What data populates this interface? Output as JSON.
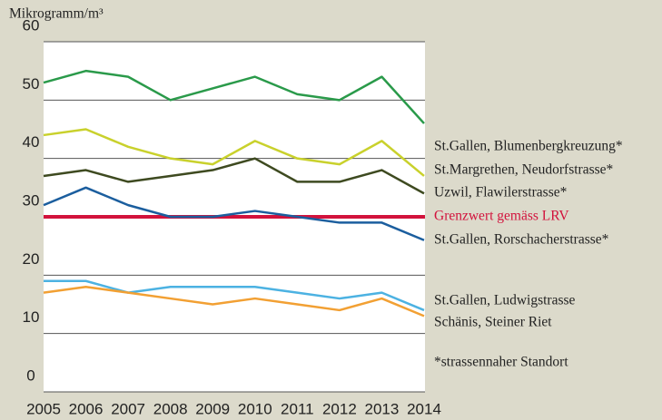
{
  "chart_data": {
    "type": "line",
    "ylabel": "Mikrogramm/m³",
    "x": [
      2005,
      2006,
      2007,
      2008,
      2009,
      2010,
      2011,
      2012,
      2013,
      2014
    ],
    "xlim": [
      2005,
      2014
    ],
    "xticks": [
      2005,
      2006,
      2007,
      2008,
      2009,
      2010,
      2011,
      2012,
      2013,
      2014
    ],
    "ylim": [
      0,
      60
    ],
    "yticks": [
      0,
      10,
      20,
      30,
      40,
      50,
      60
    ],
    "grid": true,
    "series": [
      {
        "name": "St.Gallen, Blumenbergkreuzung*",
        "color": "#2a9a4a",
        "values": [
          53,
          55,
          54,
          50,
          52,
          54,
          51,
          50,
          54,
          46
        ]
      },
      {
        "name": "St.Margrethen, Neudorfstrasse*",
        "color": "#c9d12c",
        "values": [
          44,
          45,
          42,
          40,
          39,
          43,
          40,
          39,
          43,
          37
        ]
      },
      {
        "name": "Uzwil, Flawilerstrasse*",
        "color": "#3e4a20",
        "values": [
          37,
          38,
          36,
          37,
          38,
          40,
          36,
          36,
          38,
          34
        ]
      },
      {
        "name": "St.Gallen, Rorschacherstrasse*",
        "color": "#1b5e9e",
        "values": [
          32,
          35,
          32,
          30,
          30,
          31,
          30,
          29,
          29,
          26
        ]
      },
      {
        "name": "St.Gallen, Ludwigstrasse",
        "color": "#4cb2e2",
        "values": [
          19,
          19,
          17,
          18,
          18,
          18,
          17,
          16,
          17,
          14
        ]
      },
      {
        "name": "Schänis, Steiner Riet",
        "color": "#f2a033",
        "values": [
          17,
          18,
          17,
          16,
          15,
          16,
          15,
          14,
          16,
          13
        ]
      }
    ],
    "reference_line": {
      "value": 30,
      "label": "Grenzwert gemäss LRV",
      "color": "#d2123c"
    },
    "footnote": "*strassennaher Standort"
  }
}
